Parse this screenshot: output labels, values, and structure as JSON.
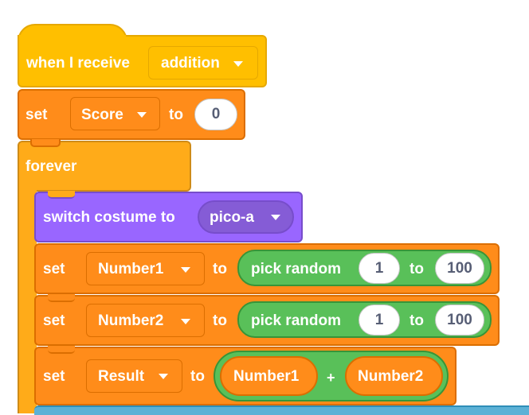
{
  "when_receive": {
    "label": "when I receive",
    "message": "addition",
    "dropdown_icon": "caret-down-icon"
  },
  "set_score": {
    "set_label": "set",
    "variable": "Score",
    "to_label": "to",
    "value": "0"
  },
  "forever": {
    "label": "forever"
  },
  "switch_costume": {
    "label": "switch costume to",
    "costume": "pico-a"
  },
  "set_number1": {
    "set_label": "set",
    "variable": "Number1",
    "to_label": "to",
    "op_label": "pick random",
    "from": "1",
    "mid_label": "to",
    "upto": "100"
  },
  "set_number2": {
    "set_label": "set",
    "variable": "Number2",
    "to_label": "to",
    "op_label": "pick random",
    "from": "1",
    "mid_label": "to",
    "upto": "100"
  },
  "set_result": {
    "set_label": "set",
    "variable": "Result",
    "to_label": "to",
    "left": "Number1",
    "operator": "+",
    "right": "Number2"
  },
  "colors": {
    "events": "#ffbf00",
    "variables": "#ff8c1a",
    "control": "#ffab19",
    "looks": "#9966ff",
    "operators": "#59c059",
    "sensing": "#5cb1d6"
  }
}
